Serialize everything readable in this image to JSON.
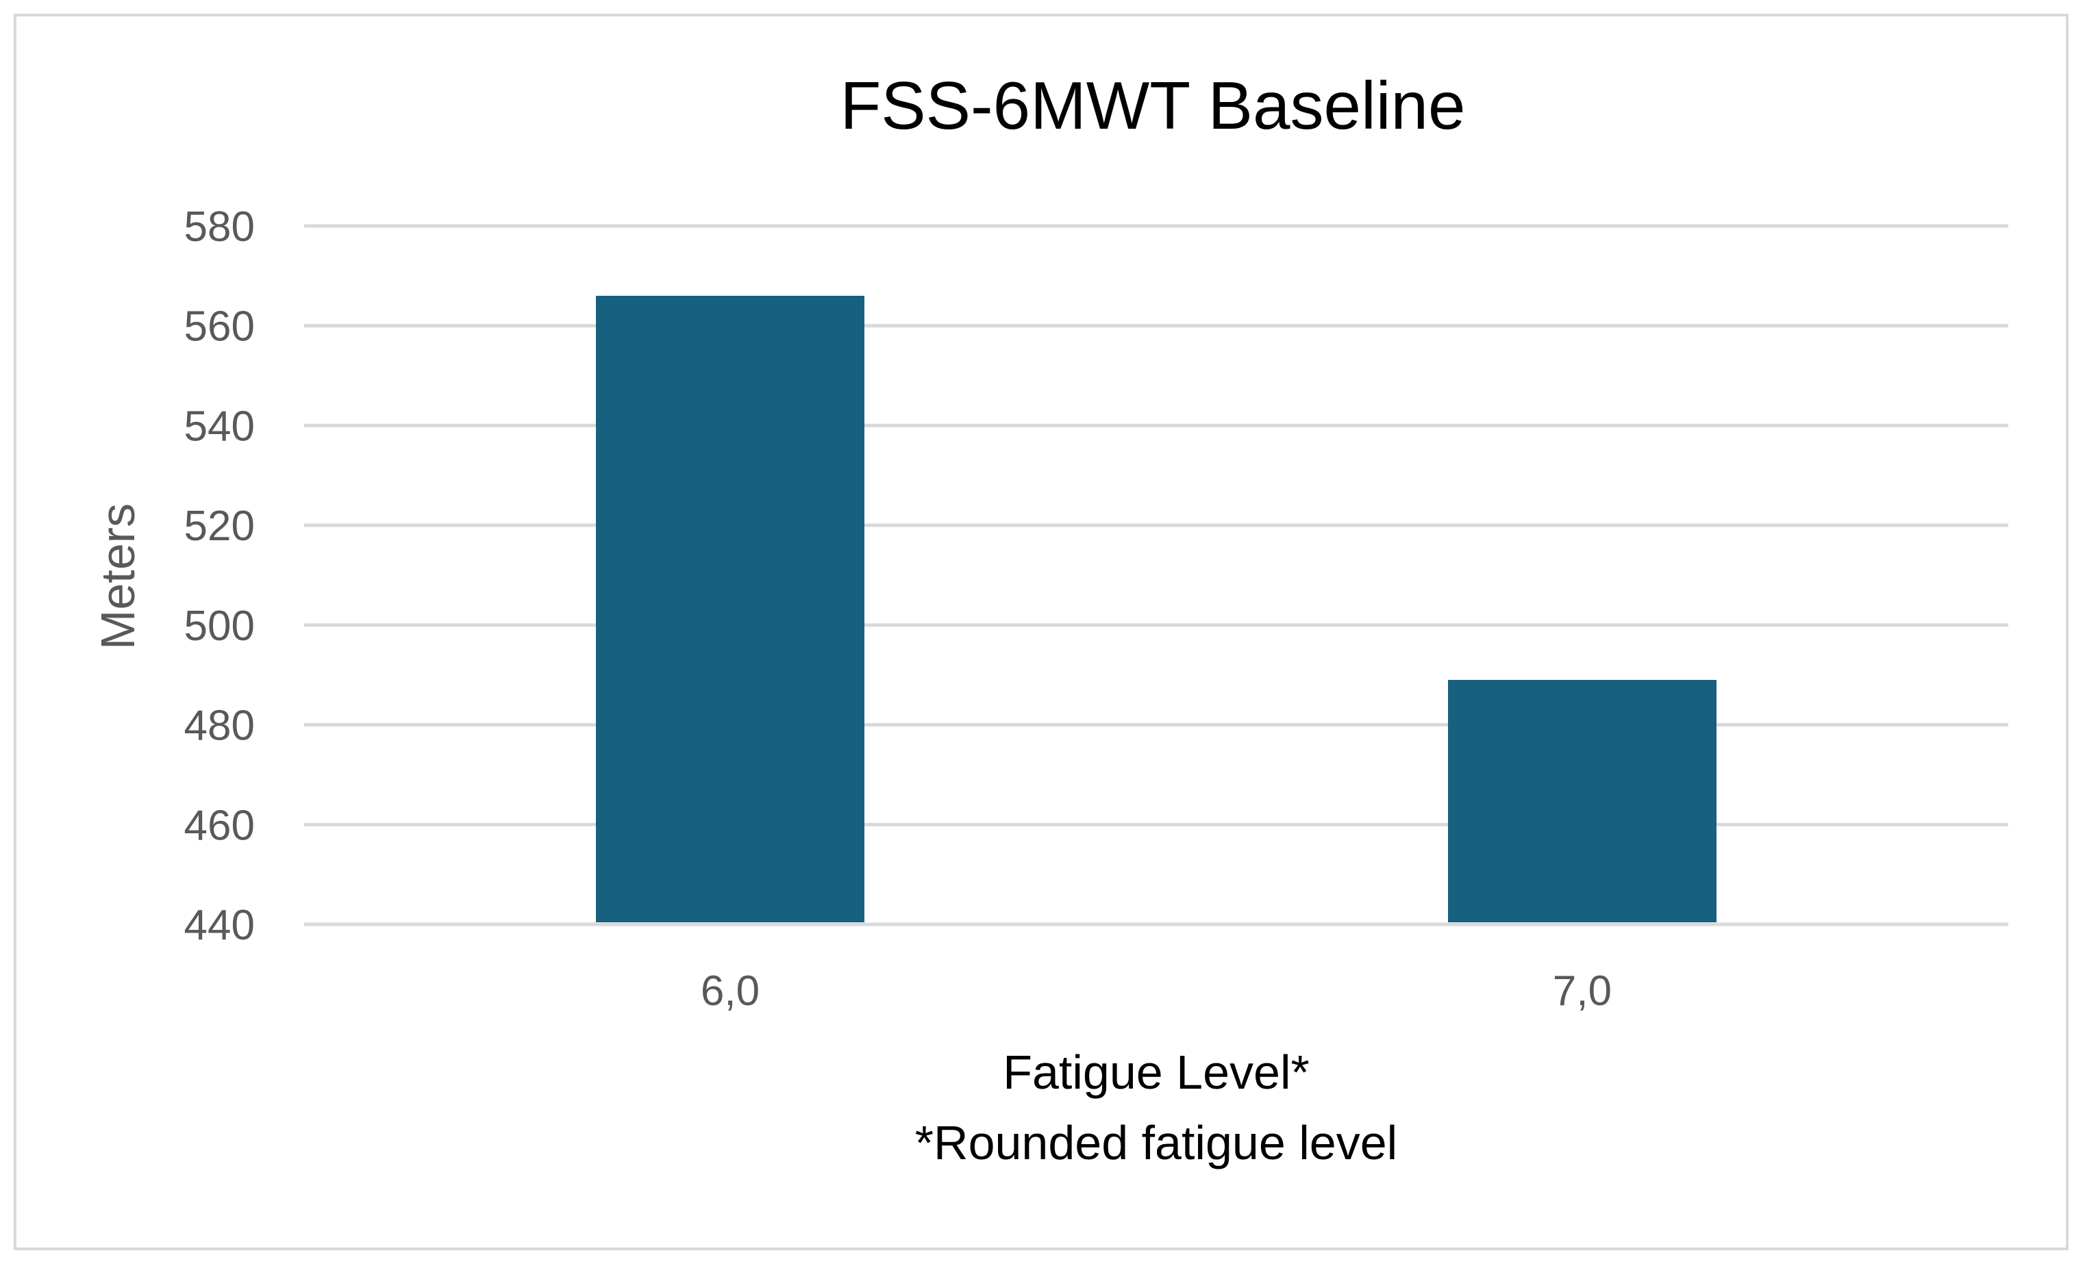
{
  "chart_data": {
    "type": "bar",
    "title": "FSS-6MWT Baseline",
    "xlabel": "Fatigue Level*",
    "xlabel_note": "*Rounded fatigue level",
    "ylabel": "Meters",
    "categories": [
      "6,0",
      "7,0"
    ],
    "values": [
      566,
      489
    ],
    "ylim": [
      440,
      580
    ],
    "yticks": [
      "580",
      "560",
      "540",
      "520",
      "500",
      "480",
      "460",
      "440"
    ],
    "grid": true,
    "legend": "none",
    "bar_color": "#17607f"
  }
}
